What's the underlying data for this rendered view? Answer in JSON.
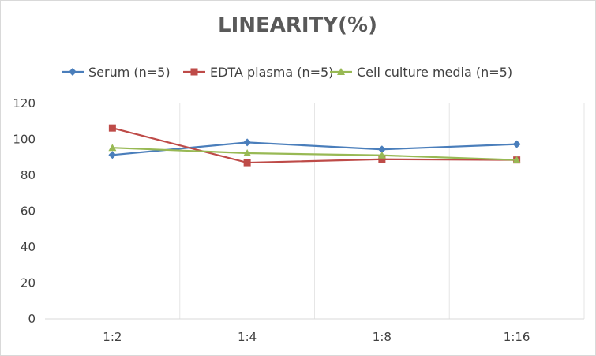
{
  "chart_data": {
    "type": "line",
    "title": "LINEARITY(%)",
    "categories": [
      "1:2",
      "1:4",
      "1:8",
      "1:16"
    ],
    "ylim": [
      0,
      120
    ],
    "yticks": [
      "0",
      "20",
      "40",
      "60",
      "80",
      "100",
      "120"
    ],
    "grid": "vertical",
    "legend": "top",
    "series": [
      {
        "name": "Serum (n=5)",
        "color": "#4a7ebb",
        "marker": "diamond",
        "values": [
          91.3,
          98.3,
          94.4,
          97.3
        ]
      },
      {
        "name": "EDTA plasma (n=5)",
        "color": "#be4b48",
        "marker": "square",
        "values": [
          106.3,
          87,
          88.9,
          88.5
        ]
      },
      {
        "name": "Cell culture media (n=5)",
        "color": "#98b954",
        "marker": "triangle",
        "values": [
          95.3,
          92.3,
          91.1,
          88.5
        ]
      }
    ]
  }
}
